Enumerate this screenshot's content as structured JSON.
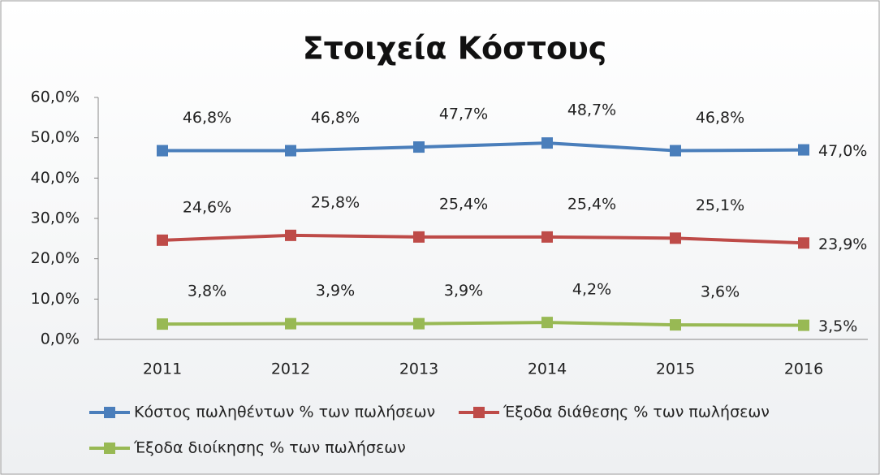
{
  "chart_data": {
    "type": "line",
    "title": "Στοιχεία Κόστους",
    "categories": [
      "2011",
      "2012",
      "2013",
      "2014",
      "2015",
      "2016"
    ],
    "series": [
      {
        "name": "Κόστος πωληθέντων % των πωλήσεων",
        "color": "#4a7ebb",
        "values": [
          46.8,
          46.8,
          47.7,
          48.7,
          46.8,
          47.0
        ],
        "value_labels": [
          "46,8%",
          "46,8%",
          "47,7%",
          "48,7%",
          "46,8%",
          "47,0%"
        ]
      },
      {
        "name": "Έξοδα διάθεσης % των πωλήσεων",
        "color": "#be4b48",
        "values": [
          24.6,
          25.8,
          25.4,
          25.4,
          25.1,
          23.9
        ],
        "value_labels": [
          "24,6%",
          "25,8%",
          "25,4%",
          "25,4%",
          "25,1%",
          "23,9%"
        ]
      },
      {
        "name": "Έξοδα διοίκησης % των πωλήσεων",
        "color": "#98b954",
        "values": [
          3.8,
          3.9,
          3.9,
          4.2,
          3.6,
          3.5
        ],
        "value_labels": [
          "3,8%",
          "3,9%",
          "3,9%",
          "4,2%",
          "3,6%",
          "3,5%"
        ]
      }
    ],
    "ylim": [
      0,
      60
    ],
    "yticks": [
      {
        "value": 0,
        "label": "0,0%"
      },
      {
        "value": 10,
        "label": "10,0%"
      },
      {
        "value": 20,
        "label": "20,0%"
      },
      {
        "value": 30,
        "label": "30,0%"
      },
      {
        "value": 40,
        "label": "40,0%"
      },
      {
        "value": 50,
        "label": "50,0%"
      },
      {
        "value": 60,
        "label": "60,0%"
      }
    ],
    "grid": false,
    "legend": "bottom"
  }
}
